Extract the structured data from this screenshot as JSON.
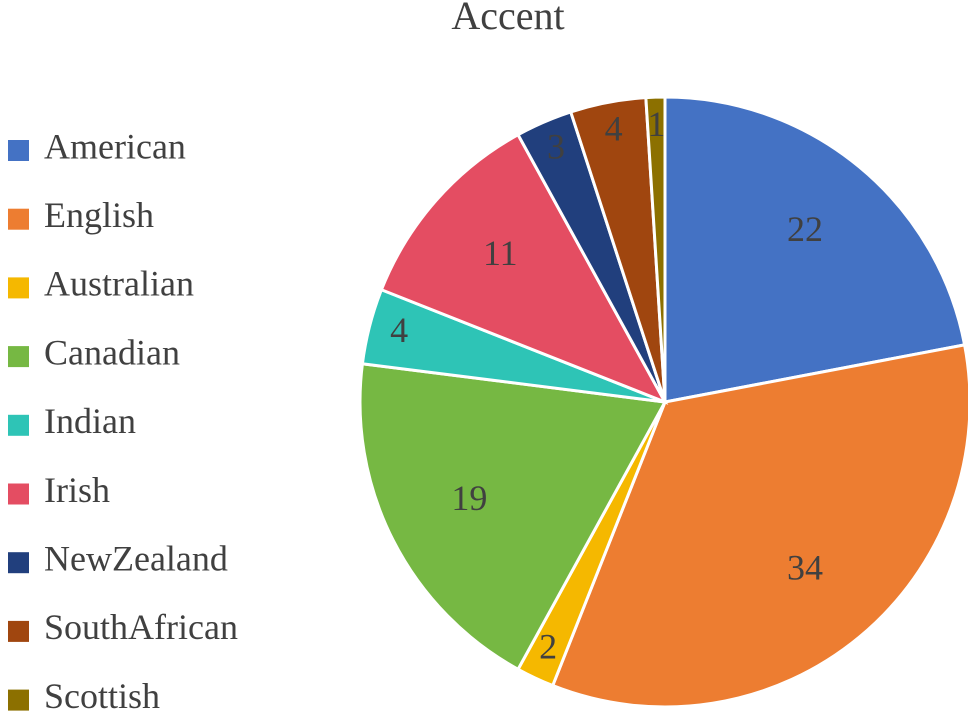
{
  "chart_data": {
    "type": "pie",
    "title": "Accent",
    "categories": [
      "American",
      "English",
      "Australian",
      "Canadian",
      "Indian",
      "Irish",
      "NewZealand",
      "SouthAfrican",
      "Scottish"
    ],
    "values": [
      22,
      34,
      2,
      19,
      4,
      11,
      3,
      4,
      1
    ],
    "colors": [
      "#4472c4",
      "#ed7d31",
      "#f5b800",
      "#76b843",
      "#2ec4b6",
      "#e44d62",
      "#213f7d",
      "#a0460f",
      "#8c7000"
    ],
    "legend": "left"
  }
}
